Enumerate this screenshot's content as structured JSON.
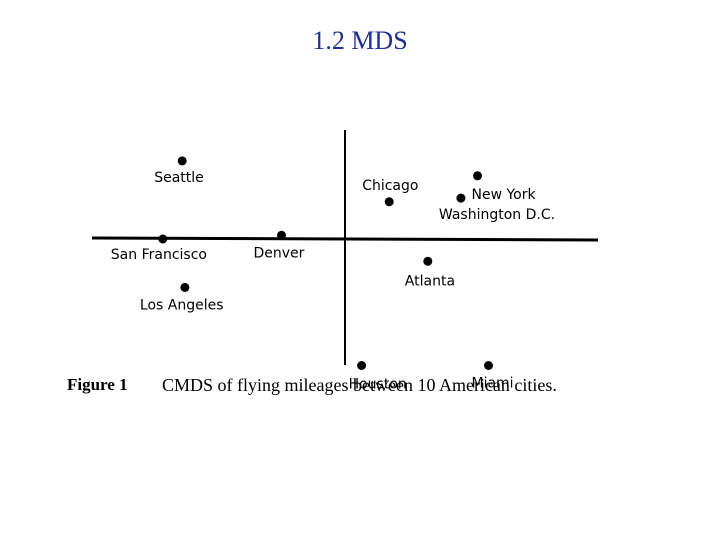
{
  "slide": {
    "title": "1.2 MDS"
  },
  "figure": {
    "label": "Figure 1",
    "caption": "CMDS of flying mileages between 10 American cities."
  },
  "chart_data": {
    "type": "scatter",
    "title": "",
    "xlabel": "",
    "ylabel": "",
    "axes": "crosshair at origin, no ticks",
    "xlim": [
      -1.0,
      1.0
    ],
    "ylim": [
      -0.4,
      0.25
    ],
    "grid": false,
    "legend": "none",
    "points": [
      {
        "label": "Seattle",
        "x": -0.59,
        "y": 0.21
      },
      {
        "label": "San Francisco",
        "x": -0.66,
        "y": 0.0
      },
      {
        "label": "Los Angeles",
        "x": -0.58,
        "y": -0.13
      },
      {
        "label": "Denver",
        "x": -0.23,
        "y": 0.01
      },
      {
        "label": "Chicago",
        "x": 0.16,
        "y": 0.1
      },
      {
        "label": "New York",
        "x": 0.48,
        "y": 0.17
      },
      {
        "label": "Washington D.C.",
        "x": 0.42,
        "y": 0.11
      },
      {
        "label": "Atlanta",
        "x": 0.3,
        "y": -0.06
      },
      {
        "label": "Houston",
        "x": 0.06,
        "y": -0.34
      },
      {
        "label": "Miami",
        "x": 0.52,
        "y": -0.34
      }
    ]
  }
}
